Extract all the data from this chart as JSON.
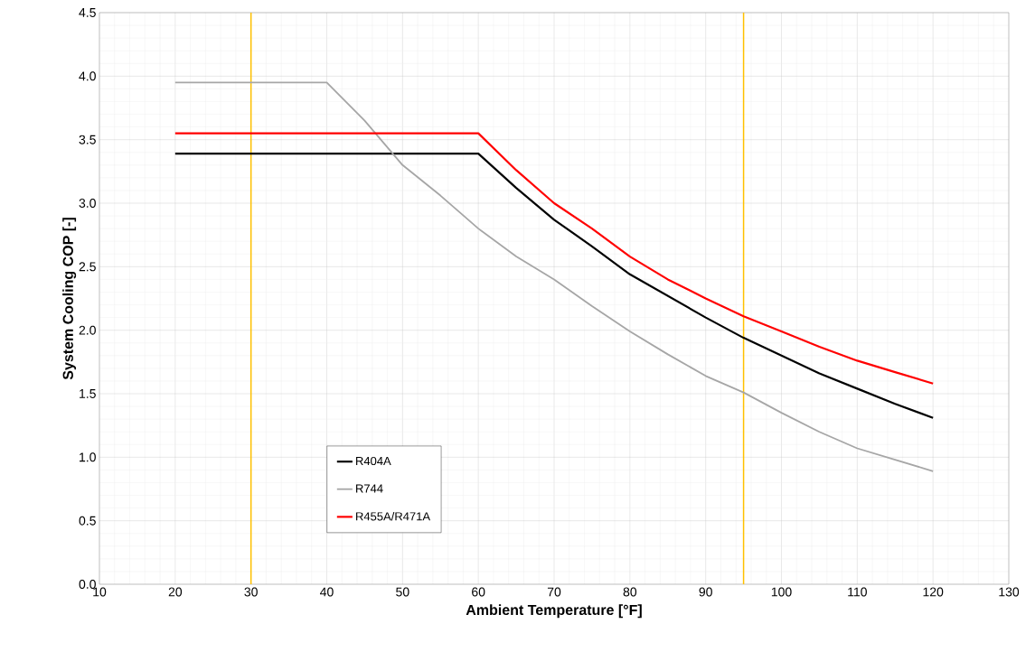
{
  "chart_data": {
    "type": "line",
    "xlabel": "Ambient Temperature [°F]",
    "ylabel": "System Cooling COP [-]",
    "x": [
      20,
      25,
      30,
      35,
      40,
      45,
      50,
      55,
      60,
      65,
      70,
      75,
      80,
      85,
      90,
      95,
      100,
      105,
      110,
      115,
      120
    ],
    "series": [
      {
        "name": "R404A",
        "color": "#000000",
        "values": [
          3.39,
          3.39,
          3.39,
          3.39,
          3.39,
          3.39,
          3.39,
          3.39,
          3.39,
          3.12,
          2.87,
          2.66,
          2.44,
          2.27,
          2.1,
          1.94,
          1.8,
          1.66,
          1.54,
          1.42,
          1.31
        ]
      },
      {
        "name": "R744",
        "color": "#a6a6a6",
        "values": [
          3.95,
          3.95,
          3.95,
          3.95,
          3.95,
          3.65,
          3.3,
          3.06,
          2.8,
          2.58,
          2.4,
          2.19,
          1.99,
          1.81,
          1.64,
          1.51,
          1.35,
          1.2,
          1.07,
          0.98,
          0.89
        ]
      },
      {
        "name": "R455A/R471A",
        "color": "#ff0000",
        "values": [
          3.55,
          3.55,
          3.55,
          3.55,
          3.55,
          3.55,
          3.55,
          3.55,
          3.55,
          3.26,
          3.0,
          2.8,
          2.58,
          2.4,
          2.25,
          2.11,
          1.99,
          1.87,
          1.76,
          1.67,
          1.58
        ]
      }
    ],
    "xlim": [
      10,
      130
    ],
    "xticks": [
      10,
      20,
      30,
      40,
      50,
      60,
      70,
      80,
      90,
      100,
      110,
      120,
      130
    ],
    "ylim": [
      0,
      4.5
    ],
    "yticks": [
      {
        "value": 0,
        "label": "0.0"
      },
      0.5,
      {
        "value": 1,
        "label": "1.0"
      },
      1.5,
      {
        "value": 2,
        "label": "2.0"
      },
      2.5,
      {
        "value": 3,
        "label": "3.0"
      },
      3.5,
      {
        "value": 4,
        "label": "4.0"
      },
      4.5
    ],
    "ref_lines": [
      {
        "axis": "x",
        "value": 30,
        "color": "#ffc000"
      },
      {
        "axis": "x",
        "value": 95,
        "color": "#ffc000"
      }
    ],
    "grid": true,
    "legend": "bottom left",
    "marker": "none",
    "line_style": "solid"
  }
}
